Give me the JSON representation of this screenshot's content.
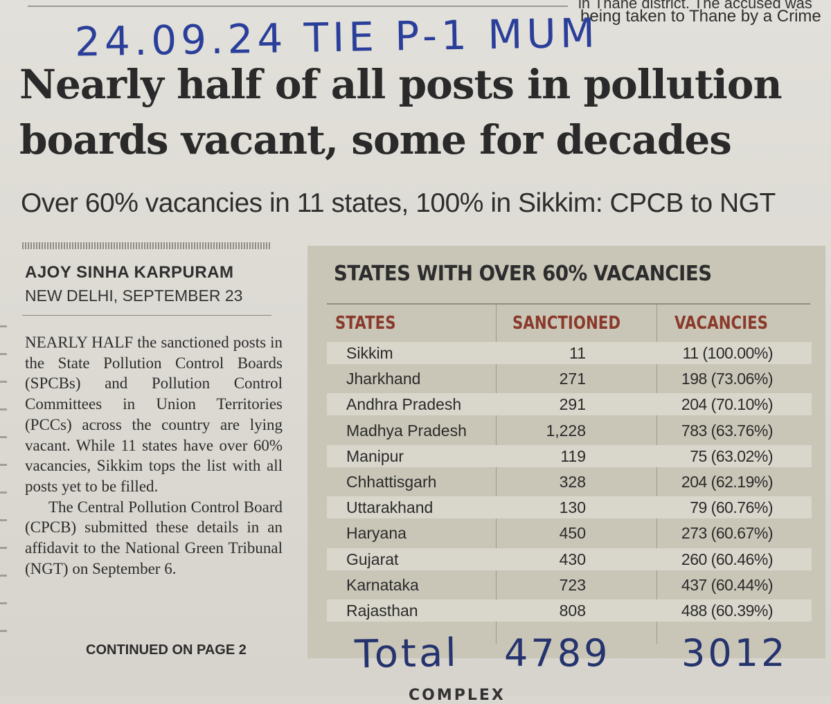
{
  "top_snippet": {
    "line1": "in Thane district. The accused was",
    "line2": "being taken to Thane by a Crime"
  },
  "handwritten_note": "24.09.24 TIE P-1 MUM",
  "headline": {
    "line1": "Nearly half of all posts in pollution",
    "line2": "boards vacant, some for decades"
  },
  "subhead": "Over 60% vacancies in 11 states, 100% in Sikkim: CPCB to NGT",
  "byline": "AJOY SINHA KARPURAM",
  "dateline": "NEW DELHI, SEPTEMBER 23",
  "body": {
    "para1": "NEARLY HALF the sanctioned posts in the State Pollution Control Boards (SPCBs) and Pollution Control Committees in Union Territories (PCCs) across the country are lying vacant. While 11 states have over 60% vacancies, Sikkim tops the list with all posts yet to be filled.",
    "para2": "The Central Pollution Control Board (CPCB) submitted these details in an affidavit to the National Green Tribunal (NGT) on September 6."
  },
  "continued": "CONTINUED ON PAGE 2",
  "table": {
    "title": "STATES WITH OVER 60% VACANCIES",
    "headers": {
      "state": "STATES",
      "sanctioned": "SANCTIONED",
      "vacancies": "VACANCIES"
    },
    "rows": [
      {
        "state": "Sikkim",
        "sanctioned": "11",
        "vacancies": "11 (100.00%)"
      },
      {
        "state": "Jharkhand",
        "sanctioned": "271",
        "vacancies": "198 (73.06%)"
      },
      {
        "state": "Andhra Pradesh",
        "sanctioned": "291",
        "vacancies": "204 (70.10%)"
      },
      {
        "state": "Madhya Pradesh",
        "sanctioned": "1,228",
        "vacancies": "783 (63.76%)"
      },
      {
        "state": "Manipur",
        "sanctioned": "119",
        "vacancies": "75 (63.02%)"
      },
      {
        "state": "Chhattisgarh",
        "sanctioned": "328",
        "vacancies": "204 (62.19%)"
      },
      {
        "state": "Uttarakhand",
        "sanctioned": "130",
        "vacancies": "79 (60.76%)"
      },
      {
        "state": "Haryana",
        "sanctioned": "450",
        "vacancies": "273 (60.67%)"
      },
      {
        "state": "Gujarat",
        "sanctioned": "430",
        "vacancies": "260 (60.46%)"
      },
      {
        "state": "Karnataka",
        "sanctioned": "723",
        "vacancies": "437 (60.44%)"
      },
      {
        "state": "Rajasthan",
        "sanctioned": "808",
        "vacancies": "488 (60.39%)"
      }
    ]
  },
  "handwritten_total": {
    "label": "Total",
    "sanctioned": "4789",
    "vacancies": "3012"
  },
  "bottom_text": "COMPLEX"
}
